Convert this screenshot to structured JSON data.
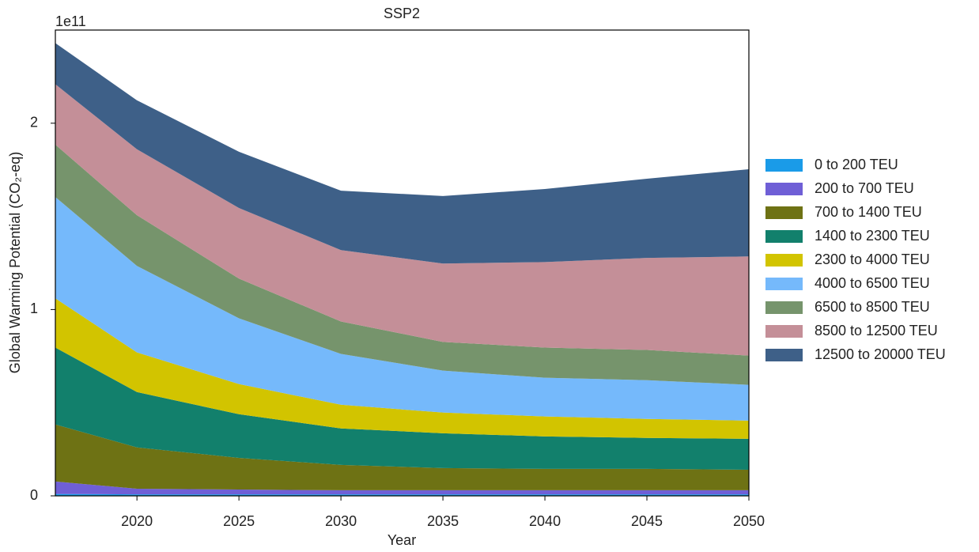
{
  "chart_data": {
    "type": "stacked_area",
    "title": "SSP2",
    "offset_label": "1e11",
    "x_label": "Year",
    "y_label": "Global Warming Potential (CO₂-eq)",
    "x": [
      2016,
      2020,
      2025,
      2030,
      2035,
      2040,
      2045,
      2050
    ],
    "xlim": [
      2016,
      2050
    ],
    "xticks": [
      2020,
      2025,
      2030,
      2035,
      2040,
      2045,
      2050
    ],
    "ylim": [
      0,
      2.5
    ],
    "yticks": [
      0,
      1,
      2
    ],
    "legend": "right",
    "series": [
      {
        "name": "0 to 200 TEU",
        "color": "#1a9be8",
        "values": [
          0.01,
          0.008,
          0.008,
          0.008,
          0.008,
          0.008,
          0.008,
          0.008
        ]
      },
      {
        "name": "200 to 700 TEU",
        "color": "#6f5fd6",
        "values": [
          0.067,
          0.03,
          0.026,
          0.022,
          0.022,
          0.022,
          0.022,
          0.022
        ]
      },
      {
        "name": "700 to 1400 TEU",
        "color": "#6e7214",
        "values": [
          0.306,
          0.222,
          0.17,
          0.136,
          0.119,
          0.115,
          0.115,
          0.11
        ]
      },
      {
        "name": "1400 to 2300 TEU",
        "color": "#12806c",
        "values": [
          0.413,
          0.297,
          0.234,
          0.196,
          0.187,
          0.174,
          0.166,
          0.166
        ]
      },
      {
        "name": "2300 to 4000 TEU",
        "color": "#d2c400",
        "values": [
          0.264,
          0.213,
          0.162,
          0.127,
          0.111,
          0.107,
          0.102,
          0.098
        ]
      },
      {
        "name": "4000 to 6500 TEU",
        "color": "#75b9fb",
        "values": [
          0.544,
          0.464,
          0.353,
          0.273,
          0.225,
          0.208,
          0.208,
          0.192
        ]
      },
      {
        "name": "6500 to 8500 TEU",
        "color": "#76946c",
        "values": [
          0.281,
          0.272,
          0.213,
          0.174,
          0.154,
          0.162,
          0.162,
          0.157
        ]
      },
      {
        "name": "8500 to 12500 TEU",
        "color": "#c48f98",
        "values": [
          0.324,
          0.354,
          0.379,
          0.383,
          0.421,
          0.459,
          0.494,
          0.532
        ]
      },
      {
        "name": "12500 to 20000 TEU",
        "color": "#3e6088",
        "values": [
          0.221,
          0.263,
          0.302,
          0.319,
          0.362,
          0.392,
          0.425,
          0.468
        ]
      }
    ]
  }
}
